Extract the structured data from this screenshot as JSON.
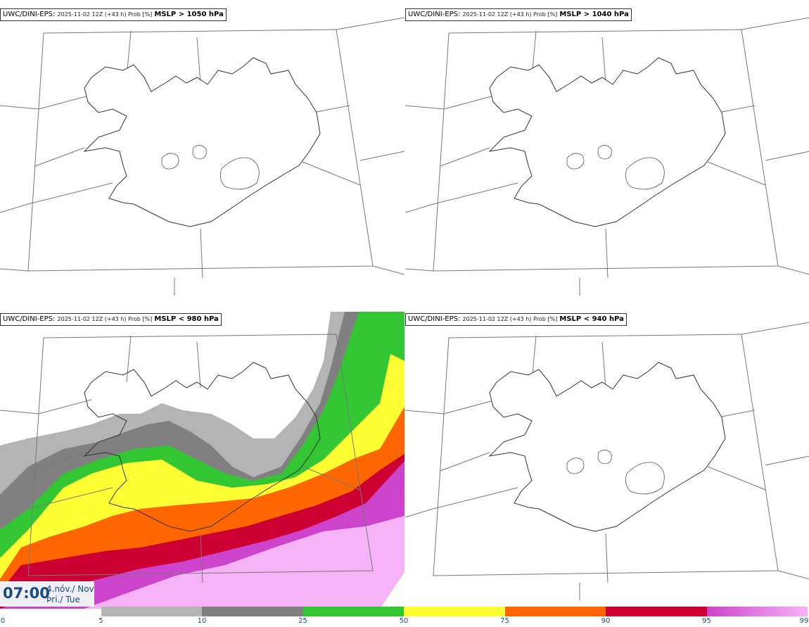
{
  "panels": [
    {
      "source": "UWC/DINI-EPS",
      "run": "2025-11-02 12Z (+43 h) Prob [%]",
      "variable": "MSLP > 1050 hPa"
    },
    {
      "source": "UWC/DINI-EPS",
      "run": "2025-11-02 12Z (+43 h) Prob [%]",
      "variable": "MSLP > 1040 hPa"
    },
    {
      "source": "UWC/DINI-EPS",
      "run": "2025-11-02 12Z (+43 h) Prob [%]",
      "variable": "MSLP < 980 hPa"
    },
    {
      "source": "UWC/DINI-EPS",
      "run": "2025-11-02 12Z (+43 h) Prob [%]",
      "variable": "MSLP < 940 hPa"
    }
  ],
  "valid_time": {
    "time": "07:00",
    "date_line1": "4.nóv./ Nov",
    "date_line2": "Þri./ Tue"
  },
  "colorbar": {
    "ticks": [
      "0",
      "5",
      "10",
      "25",
      "50",
      "75",
      "90",
      "95",
      "99"
    ],
    "colors": [
      "#ffffff",
      "#b4b4b4",
      "#808080",
      "#33c633",
      "#ffff33",
      "#ff6600",
      "#cc0033",
      "#cc44cc",
      "#f7b3f7"
    ]
  }
}
